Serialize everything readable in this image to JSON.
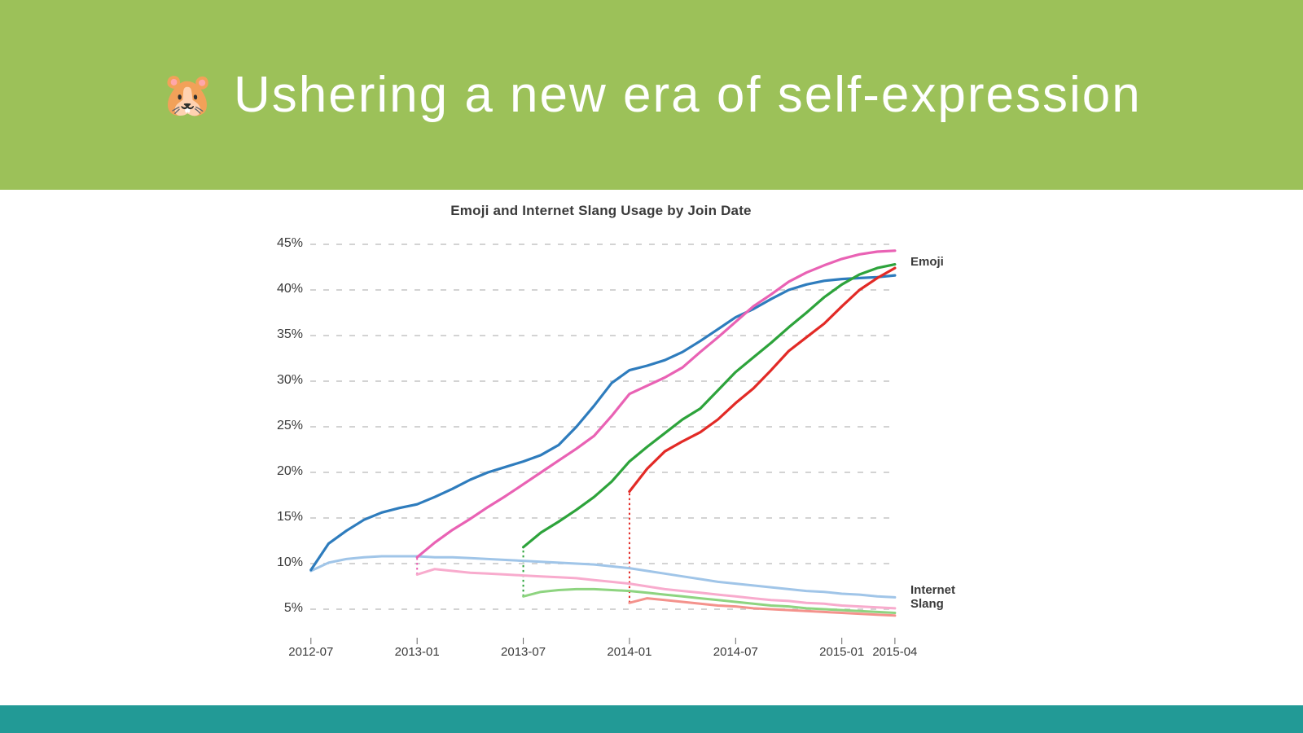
{
  "slide": {
    "header": {
      "emoji": "🐹",
      "title": "Ushering a new era of self-expression"
    },
    "colors": {
      "header_bg": "#9cc159",
      "header_text": "#ffffff",
      "footer_bar": "#229a96",
      "chart_text": "#3a3a3a",
      "gridline": "#d3d3d3"
    }
  },
  "chart_data": {
    "type": "line",
    "title": "Emoji and Internet Slang Usage by Join Date",
    "x_axis": {
      "tick_labels": [
        "2012-07",
        "2013-01",
        "2013-07",
        "2014-01",
        "2014-07",
        "2015-01",
        "2015-04"
      ],
      "tick_months": [
        0,
        6,
        12,
        18,
        24,
        30,
        33
      ],
      "month0": "2012-07",
      "month33": "2015-04"
    },
    "y_axis": {
      "tick_labels": [
        "45%",
        "40%",
        "35%",
        "30%",
        "25%",
        "20%",
        "15%",
        "10%",
        "5%"
      ],
      "min": 5,
      "max": 45,
      "unit": "%",
      "grid": "dashed-horizontal"
    },
    "group_labels": {
      "emoji": "Emoji",
      "slang": "Internet Slang"
    },
    "series": [
      {
        "id": "emoji-2012-07",
        "group": "Emoji",
        "join_date": "2012-07",
        "color": "#2e7cbd",
        "start_month": 0,
        "values": [
          9.3,
          12.2,
          13.6,
          14.8,
          15.6,
          16.1,
          16.5,
          17.3,
          18.2,
          19.2,
          20.0,
          20.6,
          21.2,
          21.9,
          23.0,
          25.0,
          27.3,
          29.8,
          31.2,
          31.7,
          32.3,
          33.2,
          34.4,
          35.7,
          37.0,
          37.9,
          39.0,
          40.0,
          40.6,
          41.0,
          41.2,
          41.3,
          41.4,
          41.6
        ]
      },
      {
        "id": "emoji-2013-01",
        "group": "Emoji",
        "join_date": "2013-01",
        "color": "#e962b4",
        "start_month": 6,
        "values": [
          10.7,
          12.3,
          13.7,
          14.9,
          16.2,
          17.4,
          18.7,
          20.0,
          21.3,
          22.6,
          24.0,
          26.2,
          28.6,
          29.5,
          30.4,
          31.5,
          33.2,
          34.8,
          36.5,
          38.2,
          39.5,
          40.9,
          41.9,
          42.7,
          43.4,
          43.9,
          44.2,
          44.3
        ]
      },
      {
        "id": "emoji-2013-07",
        "group": "Emoji",
        "join_date": "2013-07",
        "color": "#2da33b",
        "start_month": 12,
        "values": [
          11.8,
          13.4,
          14.6,
          15.9,
          17.3,
          19.0,
          21.2,
          22.8,
          24.3,
          25.8,
          27.0,
          29.0,
          31.0,
          32.6,
          34.2,
          35.9,
          37.5,
          39.2,
          40.6,
          41.7,
          42.4,
          42.8
        ]
      },
      {
        "id": "emoji-2014-01",
        "group": "Emoji",
        "join_date": "2014-01",
        "color": "#e22a26",
        "start_month": 18,
        "values": [
          17.9,
          20.4,
          22.3,
          23.4,
          24.4,
          25.8,
          27.6,
          29.2,
          31.2,
          33.3,
          34.8,
          36.3,
          38.2,
          40.0,
          41.3,
          42.4
        ]
      },
      {
        "id": "slang-2012-07",
        "group": "Internet Slang",
        "join_date": "2012-07",
        "color": "#a0c5e8",
        "start_month": 0,
        "values": [
          9.2,
          10.1,
          10.5,
          10.7,
          10.8,
          10.8,
          10.8,
          10.7,
          10.7,
          10.6,
          10.5,
          10.4,
          10.3,
          10.2,
          10.1,
          10.0,
          9.9,
          9.7,
          9.5,
          9.2,
          8.9,
          8.6,
          8.3,
          8.0,
          7.8,
          7.6,
          7.4,
          7.2,
          7.0,
          6.9,
          6.7,
          6.6,
          6.4,
          6.3
        ]
      },
      {
        "id": "slang-2013-01",
        "group": "Internet Slang",
        "join_date": "2013-01",
        "color": "#f8abcd",
        "start_month": 6,
        "values": [
          8.8,
          9.4,
          9.2,
          9.0,
          8.9,
          8.8,
          8.7,
          8.6,
          8.5,
          8.4,
          8.2,
          8.0,
          7.8,
          7.5,
          7.2,
          7.0,
          6.8,
          6.6,
          6.4,
          6.2,
          6.0,
          5.9,
          5.7,
          5.6,
          5.4,
          5.3,
          5.2,
          5.1
        ]
      },
      {
        "id": "slang-2013-07",
        "group": "Internet Slang",
        "join_date": "2013-07",
        "color": "#8ed480",
        "start_month": 12,
        "values": [
          6.4,
          6.9,
          7.1,
          7.2,
          7.2,
          7.1,
          7.0,
          6.8,
          6.6,
          6.4,
          6.2,
          6.0,
          5.8,
          5.6,
          5.4,
          5.3,
          5.1,
          5.0,
          4.9,
          4.8,
          4.7,
          4.6
        ]
      },
      {
        "id": "slang-2014-01",
        "group": "Internet Slang",
        "join_date": "2014-01",
        "color": "#f4928c",
        "start_month": 18,
        "values": [
          5.7,
          6.2,
          6.0,
          5.8,
          5.6,
          5.4,
          5.3,
          5.1,
          5.0,
          4.9,
          4.8,
          4.7,
          4.6,
          4.5,
          4.4,
          4.3
        ]
      }
    ],
    "join_markers": [
      {
        "join_date": "2013-01",
        "month": 6,
        "from": 8.8,
        "to": 10.7,
        "color": "#e962b4"
      },
      {
        "join_date": "2013-07",
        "month": 12,
        "from": 6.4,
        "to": 11.8,
        "color": "#2da33b"
      },
      {
        "join_date": "2014-01",
        "month": 18,
        "from": 5.7,
        "to": 17.9,
        "color": "#e22a26"
      }
    ],
    "legend_position": "right-of-lines"
  }
}
